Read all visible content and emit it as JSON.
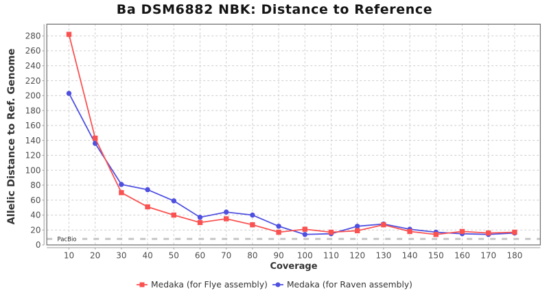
{
  "chart_data": {
    "type": "line",
    "title": "Ba DSM6882 NBK: Distance to Reference",
    "xlabel": "Coverage",
    "ylabel": "Allelic Distance to Ref. Genome",
    "x": [
      10,
      20,
      30,
      40,
      50,
      60,
      70,
      80,
      90,
      100,
      110,
      120,
      130,
      140,
      150,
      160,
      170,
      180
    ],
    "series": [
      {
        "name": "Medaka (for Flye assembly)",
        "color": "#fa5151",
        "marker": "square",
        "values": [
          282,
          143,
          70,
          51,
          40,
          30,
          35,
          27,
          17,
          21,
          17,
          19,
          27,
          18,
          14,
          18,
          16,
          17
        ]
      },
      {
        "name": "Medaka (for Raven assembly)",
        "color": "#4e50e0",
        "marker": "circle",
        "values": [
          203,
          136,
          81,
          74,
          59,
          37,
          44,
          40,
          25,
          14,
          15,
          25,
          28,
          21,
          17,
          15,
          14,
          16
        ]
      }
    ],
    "baseline_annotation": {
      "label": "PacBio",
      "value": 8,
      "line_color": "#c6c6c6",
      "label_color": "#222222"
    },
    "x_ticks": [
      10,
      20,
      30,
      40,
      50,
      60,
      70,
      80,
      90,
      100,
      110,
      120,
      130,
      140,
      150,
      160,
      170,
      180
    ],
    "y_ticks": [
      0,
      20,
      40,
      60,
      80,
      100,
      120,
      140,
      160,
      180,
      200,
      220,
      240,
      260,
      280
    ],
    "xlim": [
      1.55,
      189.81
    ],
    "ylim": [
      0,
      295.6
    ],
    "grid": true,
    "legend_position": "bottom",
    "styles": {
      "gridline_color": "#cccccc",
      "plot_border_color": "#737373",
      "axis_line_color": "#9a9a9a",
      "tick_label_color": "#4d4d4d",
      "background": "#ffffff"
    }
  }
}
